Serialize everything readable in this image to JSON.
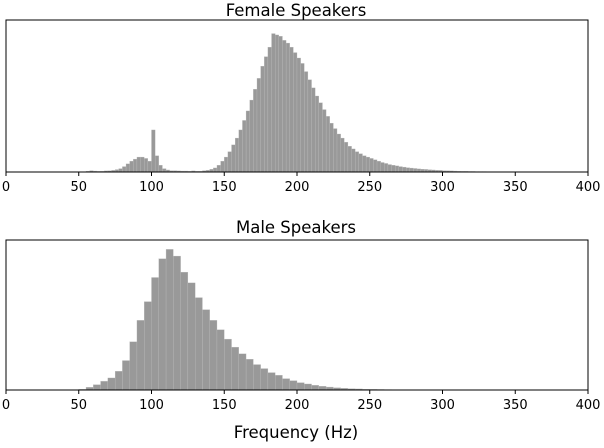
{
  "chart_data": [
    {
      "type": "bar",
      "title": "Female Speakers",
      "xlabel": "",
      "ylabel": "",
      "xlim": [
        0,
        400
      ],
      "xticks": [
        0,
        50,
        100,
        150,
        200,
        250,
        300,
        350,
        400
      ],
      "y_axis_visible": false,
      "ylim": [
        0,
        100
      ],
      "grid": false,
      "bar_color": "#999999",
      "bin_width_hz": 2.5,
      "bins": [
        [
          55,
          0.6
        ],
        [
          57.5,
          1.0
        ],
        [
          60,
          0.7
        ],
        [
          62.5,
          0.5
        ],
        [
          65,
          0.6
        ],
        [
          67.5,
          0.8
        ],
        [
          70,
          0.9
        ],
        [
          72.5,
          1.2
        ],
        [
          75,
          1.8
        ],
        [
          77.5,
          2.5
        ],
        [
          80,
          4.0
        ],
        [
          82.5,
          6.0
        ],
        [
          85,
          8.0
        ],
        [
          87.5,
          9.5
        ],
        [
          90,
          11.0
        ],
        [
          92.5,
          11.0
        ],
        [
          95,
          10.0
        ],
        [
          97.5,
          8.0
        ],
        [
          100,
          31.0
        ],
        [
          102.5,
          12.0
        ],
        [
          105,
          5.0
        ],
        [
          107.5,
          2.5
        ],
        [
          110,
          1.5
        ],
        [
          112.5,
          1.0
        ],
        [
          115,
          1.0
        ],
        [
          117.5,
          0.8
        ],
        [
          120,
          0.7
        ],
        [
          122.5,
          0.7
        ],
        [
          125,
          0.6
        ],
        [
          127.5,
          0.8
        ],
        [
          130,
          0.6
        ],
        [
          132.5,
          0.6
        ],
        [
          135,
          1.0
        ],
        [
          137.5,
          1.3
        ],
        [
          140,
          2.0
        ],
        [
          142.5,
          3.0
        ],
        [
          145,
          5.0
        ],
        [
          147.5,
          8.0
        ],
        [
          150,
          11.0
        ],
        [
          152.5,
          15.0
        ],
        [
          155,
          20.0
        ],
        [
          157.5,
          25.0
        ],
        [
          160,
          31.0
        ],
        [
          162.5,
          38.0
        ],
        [
          165,
          45.0
        ],
        [
          167.5,
          53.0
        ],
        [
          170,
          61.0
        ],
        [
          172.5,
          69.0
        ],
        [
          175,
          78.0
        ],
        [
          177.5,
          85.0
        ],
        [
          180,
          92.0
        ],
        [
          182.5,
          102.0
        ],
        [
          185,
          101.0
        ],
        [
          187.5,
          100.0
        ],
        [
          190,
          97.0
        ],
        [
          192.5,
          95.0
        ],
        [
          195,
          92.0
        ],
        [
          197.5,
          88.0
        ],
        [
          200,
          84.0
        ],
        [
          202.5,
          80.0
        ],
        [
          205,
          74.0
        ],
        [
          207.5,
          68.0
        ],
        [
          210,
          62.0
        ],
        [
          212.5,
          56.0
        ],
        [
          215,
          51.0
        ],
        [
          217.5,
          46.0
        ],
        [
          220,
          41.0
        ],
        [
          222.5,
          36.0
        ],
        [
          225,
          32.0
        ],
        [
          227.5,
          28.0
        ],
        [
          230,
          25.0
        ],
        [
          232.5,
          22.0
        ],
        [
          235,
          19.0
        ],
        [
          237.5,
          17.0
        ],
        [
          240,
          15.0
        ],
        [
          242.5,
          13.5
        ],
        [
          245,
          12.0
        ],
        [
          247.5,
          11.0
        ],
        [
          250,
          10.0
        ],
        [
          252.5,
          9.0
        ],
        [
          255,
          8.0
        ],
        [
          257.5,
          7.0
        ],
        [
          260,
          6.3
        ],
        [
          262.5,
          5.5
        ],
        [
          265,
          5.0
        ],
        [
          267.5,
          4.5
        ],
        [
          270,
          4.0
        ],
        [
          272.5,
          3.6
        ],
        [
          275,
          3.2
        ],
        [
          277.5,
          2.9
        ],
        [
          280,
          2.6
        ],
        [
          282.5,
          2.3
        ],
        [
          285,
          2.1
        ],
        [
          287.5,
          1.9
        ],
        [
          290,
          1.7
        ],
        [
          292.5,
          1.5
        ],
        [
          295,
          1.3
        ],
        [
          297.5,
          1.2
        ],
        [
          300,
          1.0
        ],
        [
          302.5,
          0.9
        ],
        [
          305,
          0.8
        ],
        [
          307.5,
          0.7
        ],
        [
          310,
          0.6
        ],
        [
          312.5,
          0.5
        ],
        [
          315,
          0.5
        ],
        [
          317.5,
          0.4
        ],
        [
          320,
          0.4
        ],
        [
          322.5,
          0.3
        ],
        [
          325,
          0.3
        ],
        [
          327.5,
          0.3
        ],
        [
          330,
          0.2
        ],
        [
          332.5,
          0.2
        ],
        [
          335,
          0.2
        ],
        [
          337.5,
          0.2
        ],
        [
          340,
          0.15
        ],
        [
          342.5,
          0.15
        ],
        [
          345,
          0.1
        ],
        [
          347.5,
          0.1
        ],
        [
          350,
          0.1
        ],
        [
          352.5,
          0.1
        ],
        [
          355,
          0.1
        ],
        [
          357.5,
          0.1
        ],
        [
          360,
          0.05
        ],
        [
          362.5,
          0.05
        ],
        [
          365,
          0.05
        ],
        [
          367.5,
          0.05
        ],
        [
          370,
          0.05
        ],
        [
          372.5,
          0.05
        ]
      ]
    },
    {
      "type": "bar",
      "title": "Male Speakers",
      "xlabel": "Frequency (Hz)",
      "ylabel": "",
      "xlim": [
        0,
        400
      ],
      "xticks": [
        0,
        50,
        100,
        150,
        200,
        250,
        300,
        350,
        400
      ],
      "y_axis_visible": false,
      "ylim": [
        0,
        100
      ],
      "grid": false,
      "bar_color": "#999999",
      "bin_width_hz": 5,
      "bins": [
        [
          50,
          0.5
        ],
        [
          55,
          2.0
        ],
        [
          60,
          4.0
        ],
        [
          65,
          6.5
        ],
        [
          70,
          9.0
        ],
        [
          75,
          14.0
        ],
        [
          80,
          22.0
        ],
        [
          85,
          36.0
        ],
        [
          90,
          52.0
        ],
        [
          95,
          66.0
        ],
        [
          100,
          84.0
        ],
        [
          105,
          98.0
        ],
        [
          110,
          105.0
        ],
        [
          115,
          100.0
        ],
        [
          120,
          88.0
        ],
        [
          125,
          80.0
        ],
        [
          130,
          69.0
        ],
        [
          135,
          60.0
        ],
        [
          140,
          52.0
        ],
        [
          145,
          45.0
        ],
        [
          150,
          38.0
        ],
        [
          155,
          32.0
        ],
        [
          160,
          27.0
        ],
        [
          165,
          23.0
        ],
        [
          170,
          19.0
        ],
        [
          175,
          16.0
        ],
        [
          180,
          13.0
        ],
        [
          185,
          11.0
        ],
        [
          190,
          8.5
        ],
        [
          195,
          7.0
        ],
        [
          200,
          5.5
        ],
        [
          205,
          4.5
        ],
        [
          210,
          3.5
        ],
        [
          215,
          2.8
        ],
        [
          220,
          2.2
        ],
        [
          225,
          1.7
        ],
        [
          230,
          1.3
        ],
        [
          235,
          1.0
        ],
        [
          240,
          0.8
        ],
        [
          245,
          0.6
        ],
        [
          250,
          0.5
        ],
        [
          255,
          0.4
        ],
        [
          260,
          0.3
        ],
        [
          265,
          0.25
        ],
        [
          270,
          0.2
        ],
        [
          275,
          0.15
        ],
        [
          280,
          0.1
        ],
        [
          285,
          0.1
        ],
        [
          290,
          0.08
        ],
        [
          295,
          0.06
        ],
        [
          300,
          0.05
        ],
        [
          305,
          0.04
        ],
        [
          310,
          0.03
        ],
        [
          315,
          0.02
        ]
      ]
    }
  ]
}
